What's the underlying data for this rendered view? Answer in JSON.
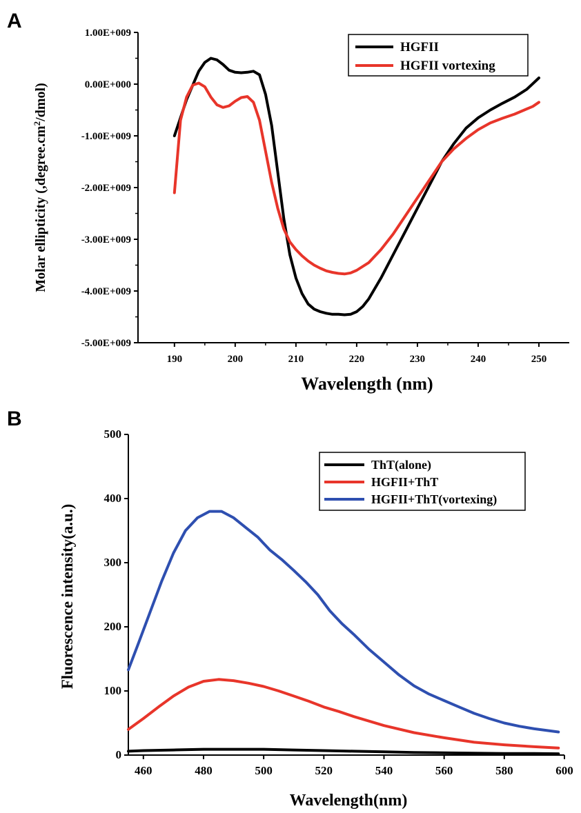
{
  "panels": {
    "a": "A",
    "b": "B"
  },
  "chart_data": [
    {
      "type": "line",
      "panel": "A",
      "xlabel": "Wavelength (nm)",
      "ylabel": "Molar ellipticity (,degree.cm",
      "ylabel_sup": "2",
      "ylabel_tail": "/dmol)",
      "xlim": [
        184,
        255
      ],
      "ylim": [
        -5000000000,
        1000000000
      ],
      "xticks": [
        190,
        200,
        210,
        220,
        230,
        240,
        250
      ],
      "xtick_labels": [
        "190",
        "200",
        "210",
        "220",
        "230",
        "240",
        "250"
      ],
      "yticks": [
        1000000000,
        0,
        -1000000000,
        -2000000000,
        -3000000000,
        -4000000000,
        -5000000000
      ],
      "ytick_labels": [
        "1.00E+009",
        "0.00E+000",
        "-1.00E+009",
        "-2.00E+009",
        "-3.00E+009",
        "-4.00E+009",
        "-5.00E+009"
      ],
      "legend_position": "top-right",
      "series": [
        {
          "name": "HGFII",
          "color": "#000000",
          "x": [
            190,
            192,
            194,
            195,
            196,
            197,
            198,
            199,
            200,
            201,
            202,
            203,
            204,
            205,
            206,
            207,
            208,
            209,
            210,
            211,
            212,
            213,
            214,
            215,
            216,
            217,
            218,
            219,
            220,
            221,
            222,
            224,
            226,
            228,
            230,
            232,
            234,
            236,
            238,
            240,
            242,
            244,
            246,
            248,
            249,
            250
          ],
          "y": [
            -1000000000,
            -300000000,
            250000000,
            420000000,
            500000000,
            470000000,
            380000000,
            270000000,
            230000000,
            220000000,
            230000000,
            250000000,
            180000000,
            -200000000,
            -800000000,
            -1700000000,
            -2600000000,
            -3300000000,
            -3750000000,
            -4050000000,
            -4250000000,
            -4350000000,
            -4400000000,
            -4430000000,
            -4450000000,
            -4450000000,
            -4460000000,
            -4450000000,
            -4400000000,
            -4300000000,
            -4150000000,
            -3750000000,
            -3300000000,
            -2850000000,
            -2400000000,
            -1950000000,
            -1500000000,
            -1150000000,
            -850000000,
            -650000000,
            -500000000,
            -370000000,
            -250000000,
            -100000000,
            10000000,
            120000000
          ]
        },
        {
          "name": "HGFII vortexing",
          "color": "#e8352a",
          "x": [
            190,
            191,
            192,
            193,
            194,
            195,
            196,
            197,
            198,
            199,
            200,
            201,
            202,
            203,
            204,
            205,
            206,
            207,
            208,
            209,
            210,
            211,
            212,
            213,
            214,
            215,
            216,
            217,
            218,
            219,
            220,
            222,
            224,
            226,
            228,
            230,
            232,
            234,
            236,
            238,
            240,
            242,
            244,
            246,
            248,
            249,
            250
          ],
          "y": [
            -2100000000,
            -700000000,
            -250000000,
            -20000000,
            20000000,
            -50000000,
            -250000000,
            -400000000,
            -450000000,
            -420000000,
            -330000000,
            -260000000,
            -240000000,
            -350000000,
            -700000000,
            -1300000000,
            -1900000000,
            -2400000000,
            -2800000000,
            -3050000000,
            -3200000000,
            -3320000000,
            -3420000000,
            -3500000000,
            -3560000000,
            -3610000000,
            -3640000000,
            -3660000000,
            -3670000000,
            -3650000000,
            -3600000000,
            -3450000000,
            -3200000000,
            -2900000000,
            -2550000000,
            -2200000000,
            -1850000000,
            -1500000000,
            -1250000000,
            -1050000000,
            -880000000,
            -750000000,
            -660000000,
            -580000000,
            -480000000,
            -430000000,
            -350000000
          ]
        }
      ]
    },
    {
      "type": "line",
      "panel": "B",
      "xlabel": "Wavelength(nm)",
      "ylabel": "Fluorescence intensity(a.u.)",
      "xlim": [
        455,
        600
      ],
      "ylim": [
        0,
        500
      ],
      "xticks": [
        460,
        480,
        500,
        520,
        540,
        560,
        580,
        600
      ],
      "xtick_labels": [
        "460",
        "480",
        "500",
        "520",
        "540",
        "560",
        "580",
        "600"
      ],
      "yticks": [
        0,
        100,
        200,
        300,
        400,
        500
      ],
      "ytick_labels": [
        "0",
        "100",
        "200",
        "300",
        "400",
        "500"
      ],
      "legend_position": "top-right",
      "series": [
        {
          "name": "ThT(alone)",
          "color": "#000000",
          "x": [
            455,
            460,
            470,
            480,
            485,
            490,
            500,
            510,
            520,
            530,
            540,
            550,
            560,
            570,
            580,
            590,
            598
          ],
          "y": [
            6,
            7,
            8,
            9,
            9,
            9,
            9,
            8,
            7,
            6,
            5,
            4,
            3.5,
            3,
            2.5,
            2.5,
            2
          ]
        },
        {
          "name": "HGFII+ThT",
          "color": "#e8352a",
          "x": [
            455,
            460,
            465,
            470,
            475,
            480,
            485,
            490,
            495,
            500,
            505,
            510,
            515,
            520,
            525,
            530,
            540,
            550,
            560,
            570,
            580,
            590,
            598
          ],
          "y": [
            40,
            57,
            75,
            92,
            106,
            115,
            118,
            116,
            112,
            107,
            100,
            92,
            84,
            75,
            68,
            60,
            46,
            35,
            27,
            20,
            16,
            13,
            11
          ]
        },
        {
          "name": "HGFII+ThT(vortexing)",
          "color": "#2e4fb0",
          "x": [
            455,
            458,
            462,
            466,
            470,
            474,
            478,
            482,
            486,
            490,
            494,
            498,
            502,
            506,
            510,
            514,
            518,
            522,
            526,
            530,
            535,
            540,
            545,
            550,
            555,
            560,
            565,
            570,
            575,
            580,
            585,
            590,
            598
          ],
          "y": [
            133,
            170,
            220,
            270,
            315,
            350,
            370,
            380,
            380,
            370,
            355,
            340,
            320,
            305,
            288,
            270,
            250,
            225,
            205,
            188,
            165,
            145,
            125,
            108,
            95,
            85,
            75,
            65,
            57,
            50,
            45,
            41,
            36
          ]
        }
      ]
    }
  ]
}
